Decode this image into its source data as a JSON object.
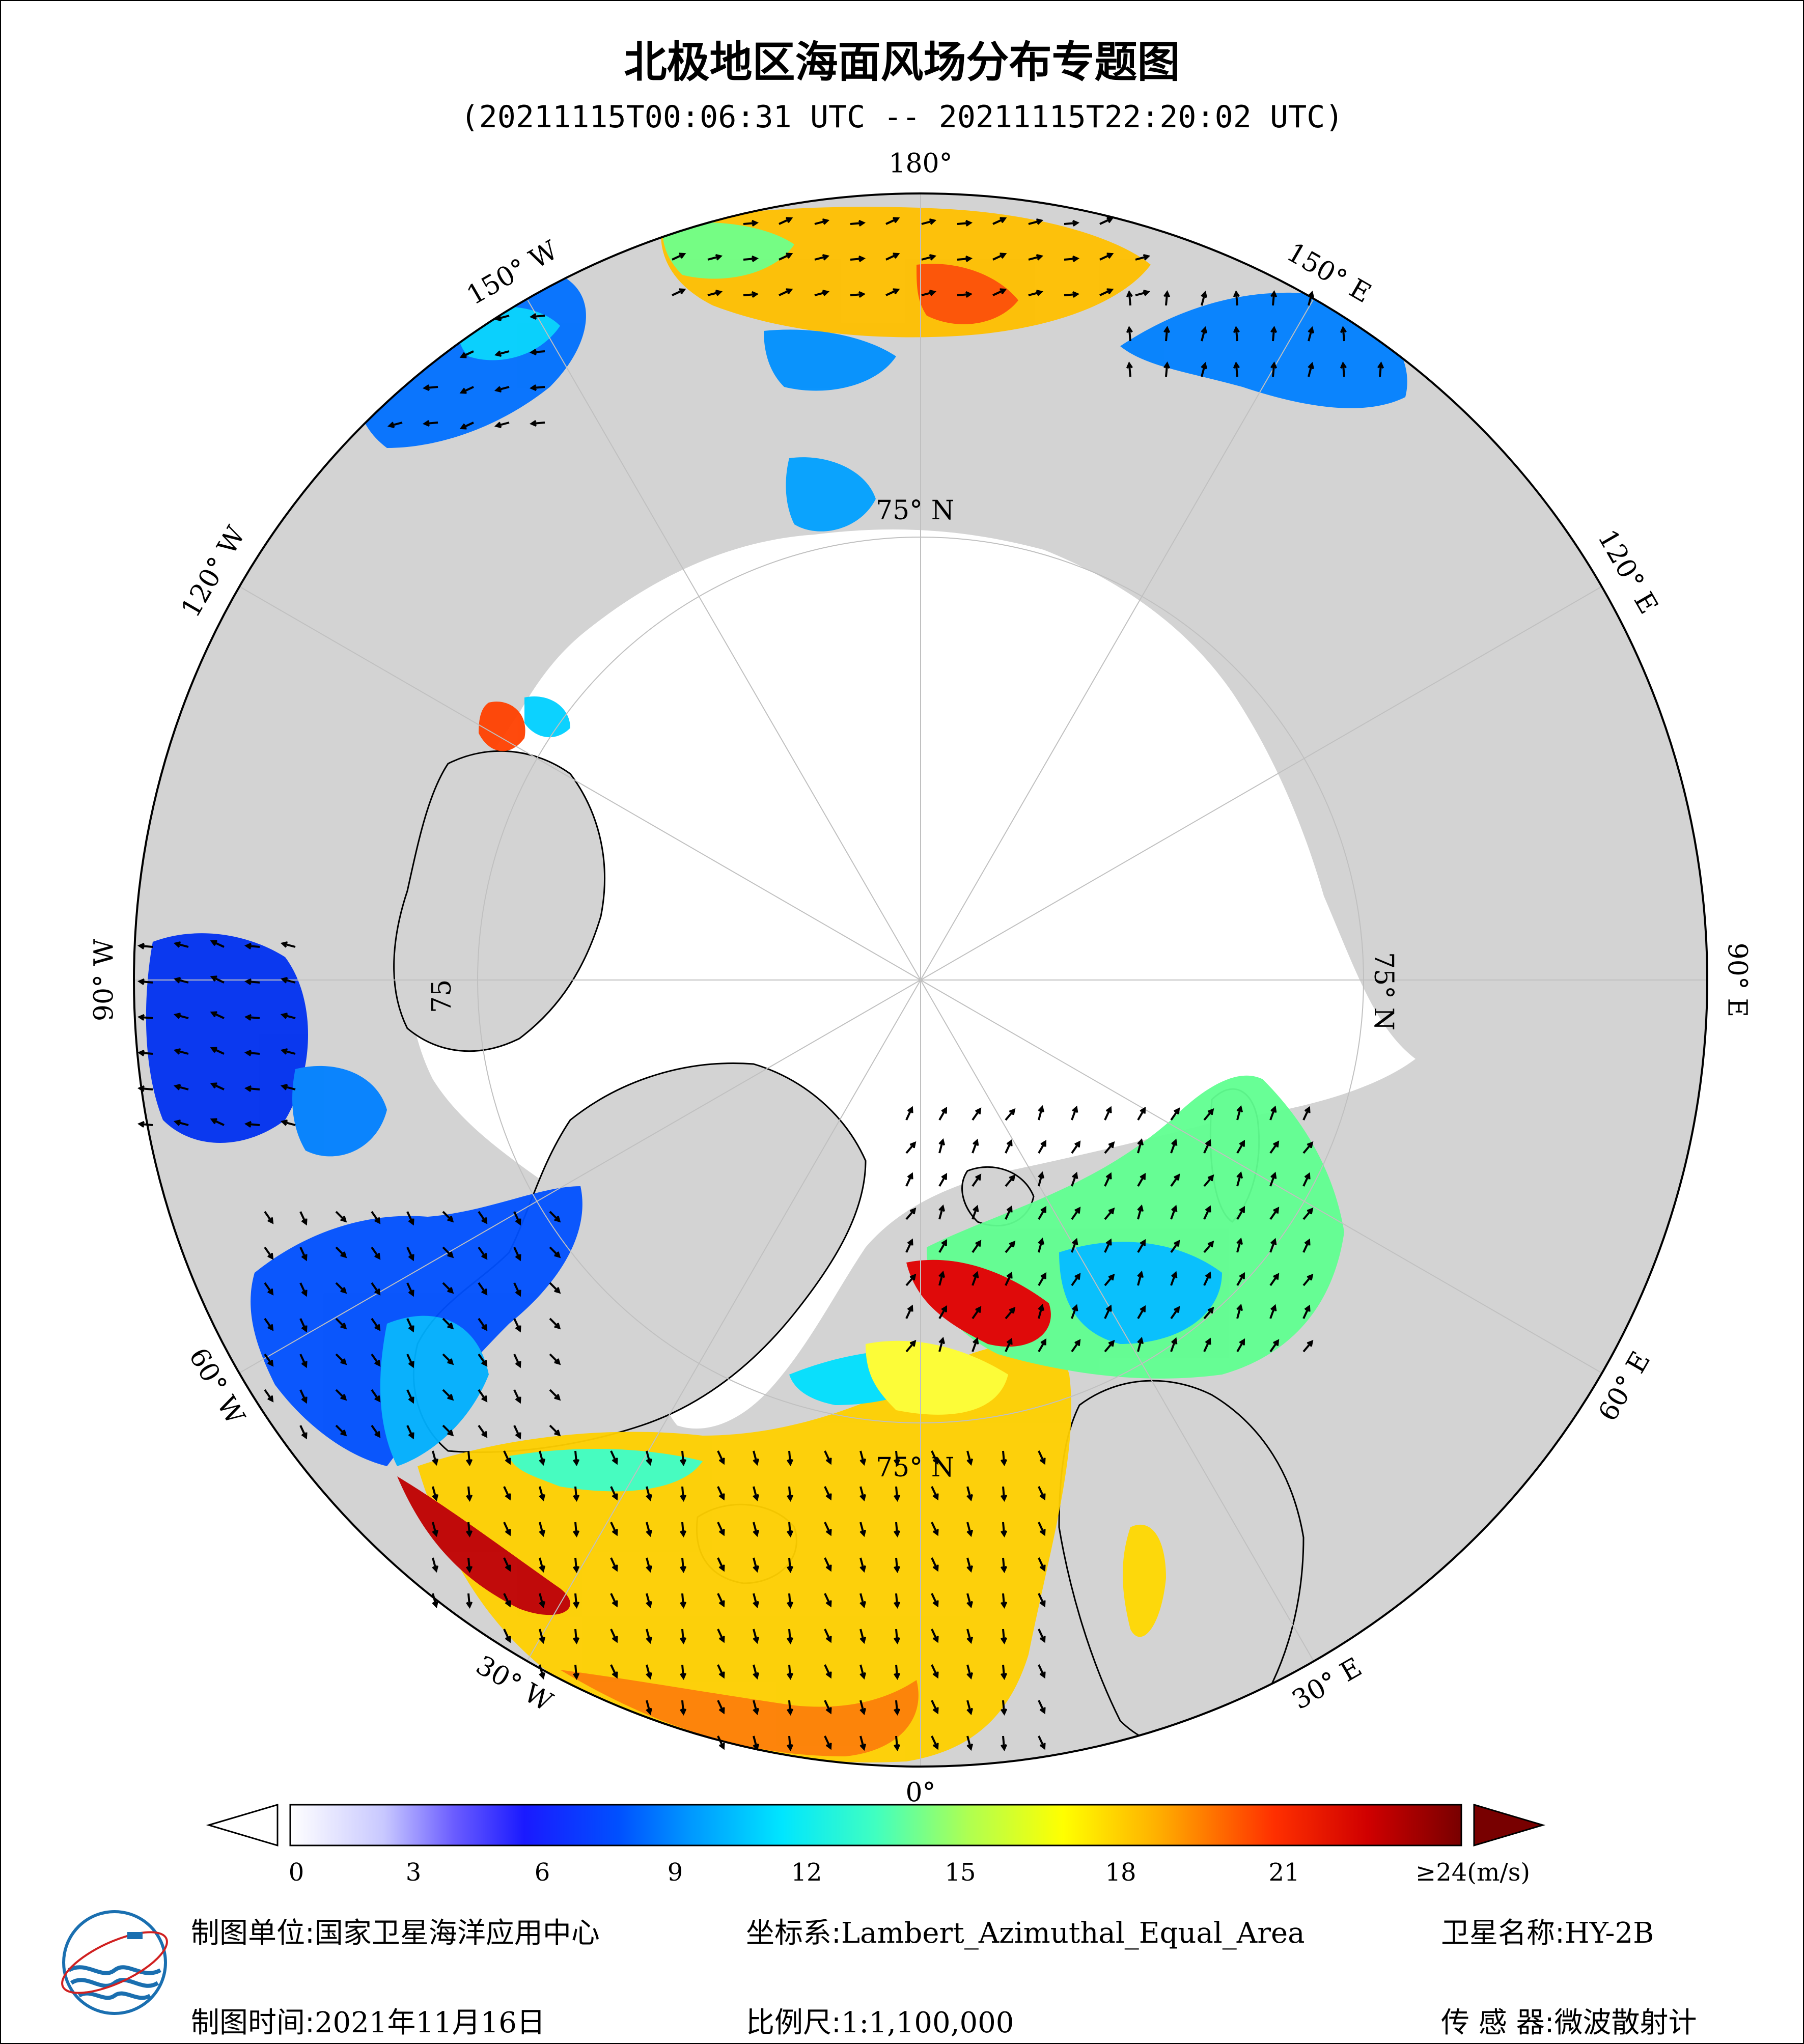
{
  "title": "北极地区海面风场分布专题图",
  "subtitle": "(20211115T00:06:31 UTC -- 20211115T22:20:02 UTC)",
  "map": {
    "projection": "Lambert_Azimuthal_Equal_Area",
    "center": "North Pole",
    "longitude_labels": [
      {
        "text": "180°",
        "lon": 180
      },
      {
        "text": "150° E",
        "lon": 150
      },
      {
        "text": "120° E",
        "lon": 120
      },
      {
        "text": "90° E",
        "lon": 90
      },
      {
        "text": "60° E",
        "lon": 60
      },
      {
        "text": "30° E",
        "lon": 30
      },
      {
        "text": "0°",
        "lon": 0
      },
      {
        "text": "30° W",
        "lon": -30
      },
      {
        "text": "60° W",
        "lon": -60
      },
      {
        "text": "90° W",
        "lon": -90
      },
      {
        "text": "120° W",
        "lon": -120
      },
      {
        "text": "150° W",
        "lon": -150
      }
    ],
    "latitude_labels": [
      "75° N",
      "75° N",
      "75° N",
      "75"
    ],
    "colors": {
      "land": "#d3d3d3",
      "ice": "#ffffff",
      "coast": "#000000",
      "grid": "#c0c0c0"
    }
  },
  "colorbar": {
    "ticks": [
      "0",
      "3",
      "6",
      "9",
      "12",
      "15",
      "18",
      "21"
    ],
    "max_label": "≥24",
    "unit": "(m/s)",
    "min": 0,
    "max": 24
  },
  "footer": {
    "unit_label": "制图单位:",
    "unit_value": "国家卫星海洋应用中心",
    "time_label": "制图时间:",
    "time_value": "2021年11月16日",
    "crs_label": "坐标系:",
    "crs_value": "Lambert_Azimuthal_Equal_Area",
    "scale_label": "比例尺:",
    "scale_value": "1:1,100,000",
    "satellite_label": "卫星名称:",
    "satellite_value": "HY-2B",
    "sensor_label": "传 感 器:",
    "sensor_value": "微波散射计"
  }
}
